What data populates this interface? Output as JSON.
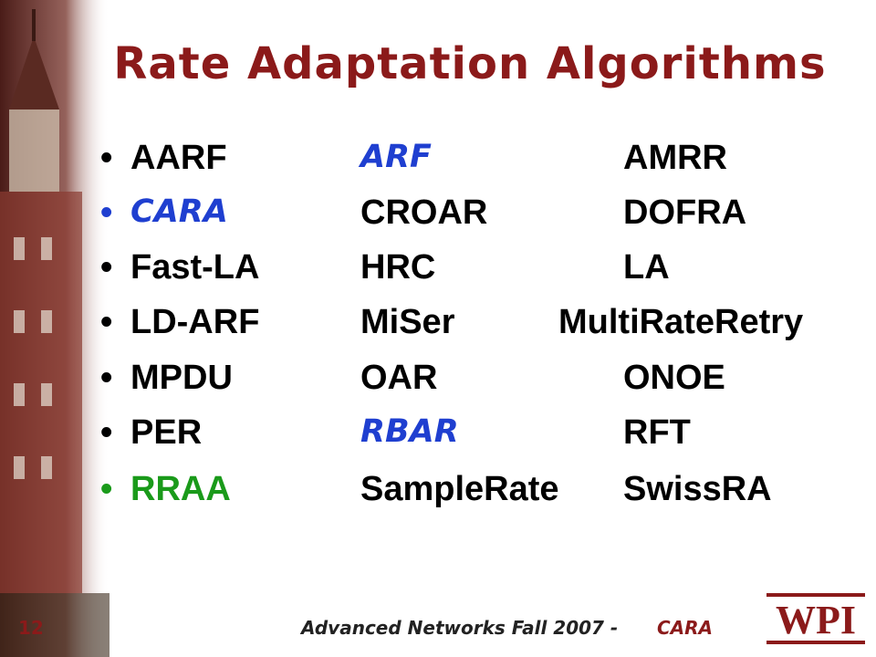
{
  "header": {
    "title": "Rate Adaptation Algorithms"
  },
  "list": {
    "bullet": "•",
    "rows": [
      [
        "AARF",
        "ARF",
        "AMRR"
      ],
      [
        "CARA",
        "CROAR",
        "DOFRA"
      ],
      [
        "Fast-LA",
        "HRC",
        "LA"
      ],
      [
        "LD-ARF",
        "MiSer",
        "MultiRateRetry"
      ],
      [
        "MPDU",
        "OAR",
        "ONOE"
      ],
      [
        "PER",
        "RBAR",
        "RFT"
      ],
      [
        "RRAA",
        "SampleRate",
        "SwissRA"
      ]
    ]
  },
  "footer": {
    "page": "12",
    "text": "Advanced Networks Fall 2007 - ",
    "highlight": "CARA",
    "logo": "WPI"
  }
}
